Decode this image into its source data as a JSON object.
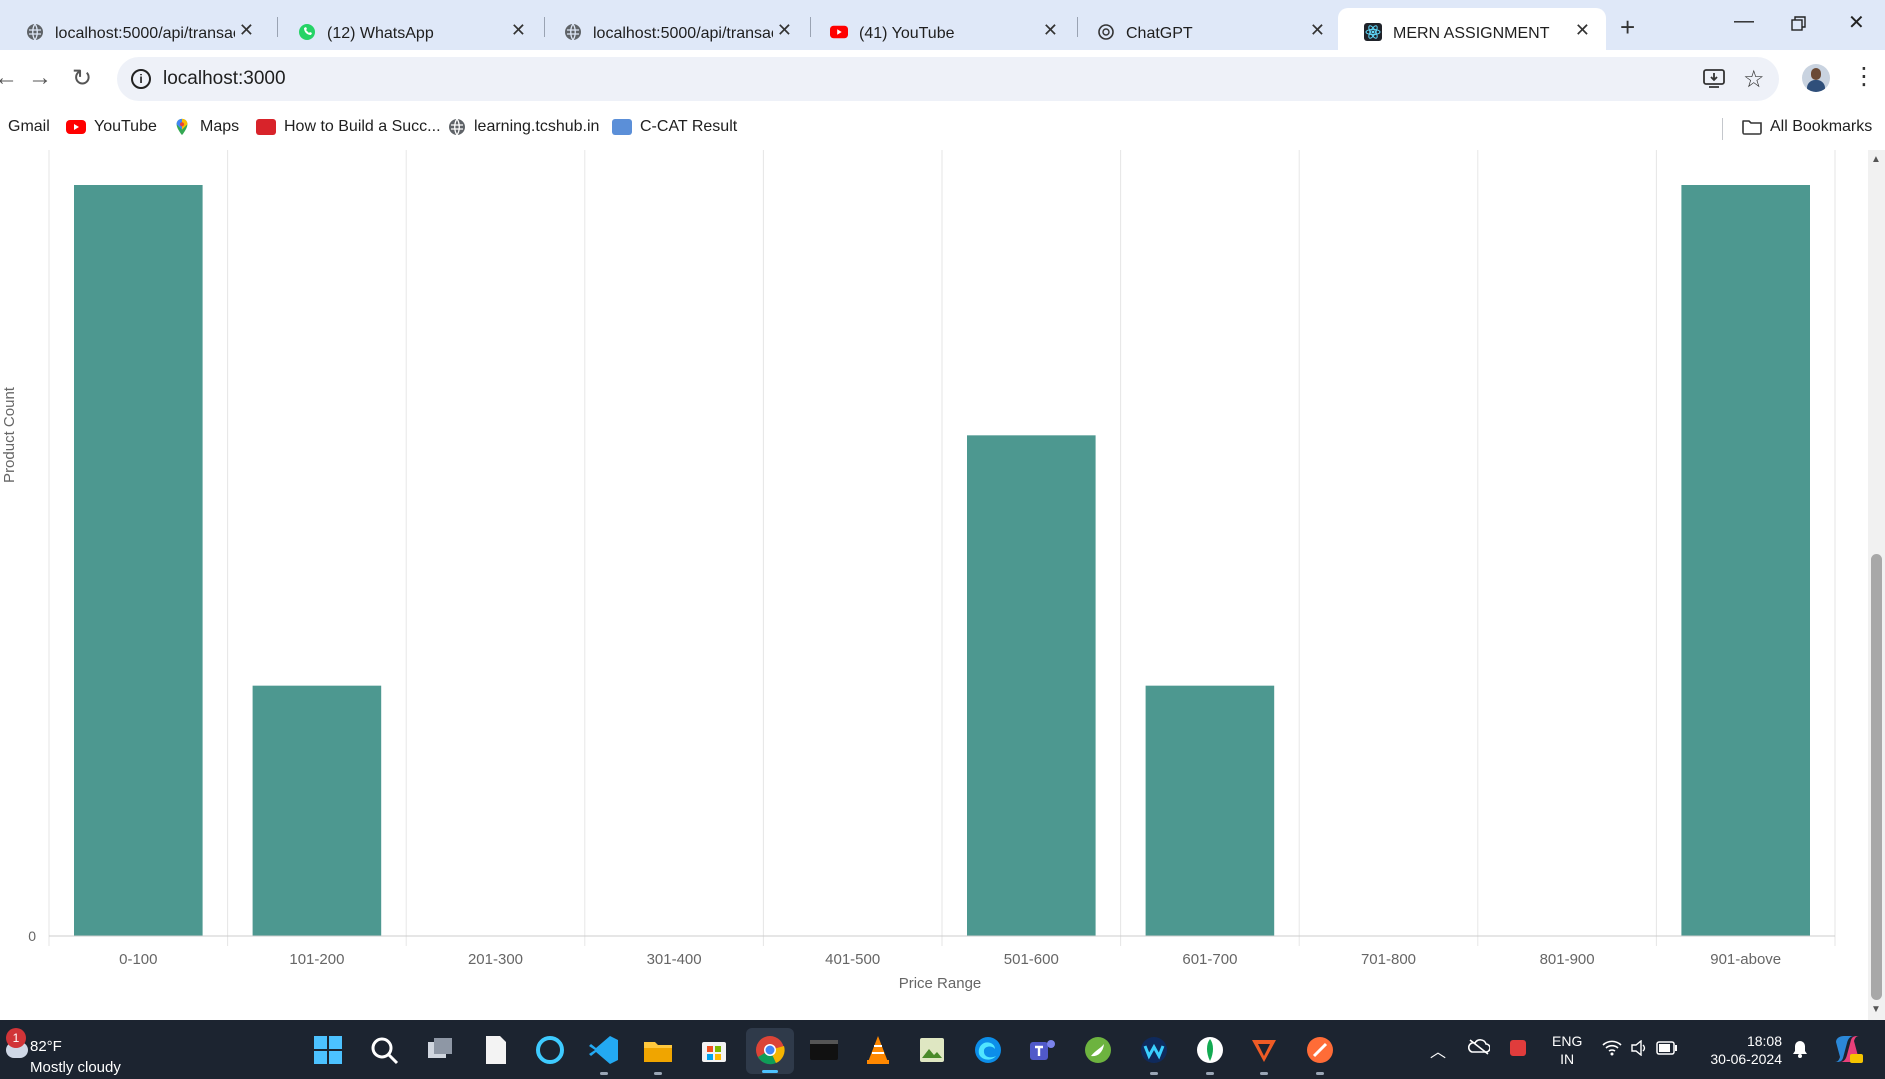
{
  "browser": {
    "tabs": [
      {
        "title": "localhost:5000/api/transacti",
        "icon": "globe-icon"
      },
      {
        "title": "(12) WhatsApp",
        "icon": "whatsapp-icon"
      },
      {
        "title": "localhost:5000/api/transacti",
        "icon": "globe-icon"
      },
      {
        "title": "(41) YouTube",
        "icon": "youtube-icon"
      },
      {
        "title": "ChatGPT",
        "icon": "chatgpt-icon"
      },
      {
        "title": "MERN ASSIGNMENT",
        "icon": "react-icon",
        "active": true
      }
    ],
    "address": "localhost:3000",
    "bookmarks": [
      {
        "label": "Gmail",
        "icon": "gmail-icon"
      },
      {
        "label": "YouTube",
        "icon": "youtube-icon"
      },
      {
        "label": "Maps",
        "icon": "maps-icon"
      },
      {
        "label": "How to Build a Succ...",
        "icon": "article-icon"
      },
      {
        "label": "learning.tcshub.in",
        "icon": "globe-icon"
      },
      {
        "label": "C-CAT Result",
        "icon": "cdac-icon"
      }
    ],
    "all_bookmarks_label": "All Bookmarks"
  },
  "chart_data": {
    "type": "bar",
    "categories": [
      "0-100",
      "101-200",
      "201-300",
      "301-400",
      "401-500",
      "501-600",
      "601-700",
      "701-800",
      "801-900",
      "901-above"
    ],
    "values": [
      3,
      1,
      0,
      0,
      0,
      2,
      1,
      0,
      0,
      3
    ],
    "xlabel": "Price Range",
    "ylabel": "Product Count",
    "visible_ytick": "0",
    "grid": true,
    "bar_color": "#4d9890"
  },
  "taskbar": {
    "weather_badge": "1",
    "weather_temp": "82°F",
    "weather_desc": "Mostly cloudy",
    "lang_line1": "ENG",
    "lang_line2": "IN",
    "time": "18:08",
    "date": "30-06-2024"
  }
}
